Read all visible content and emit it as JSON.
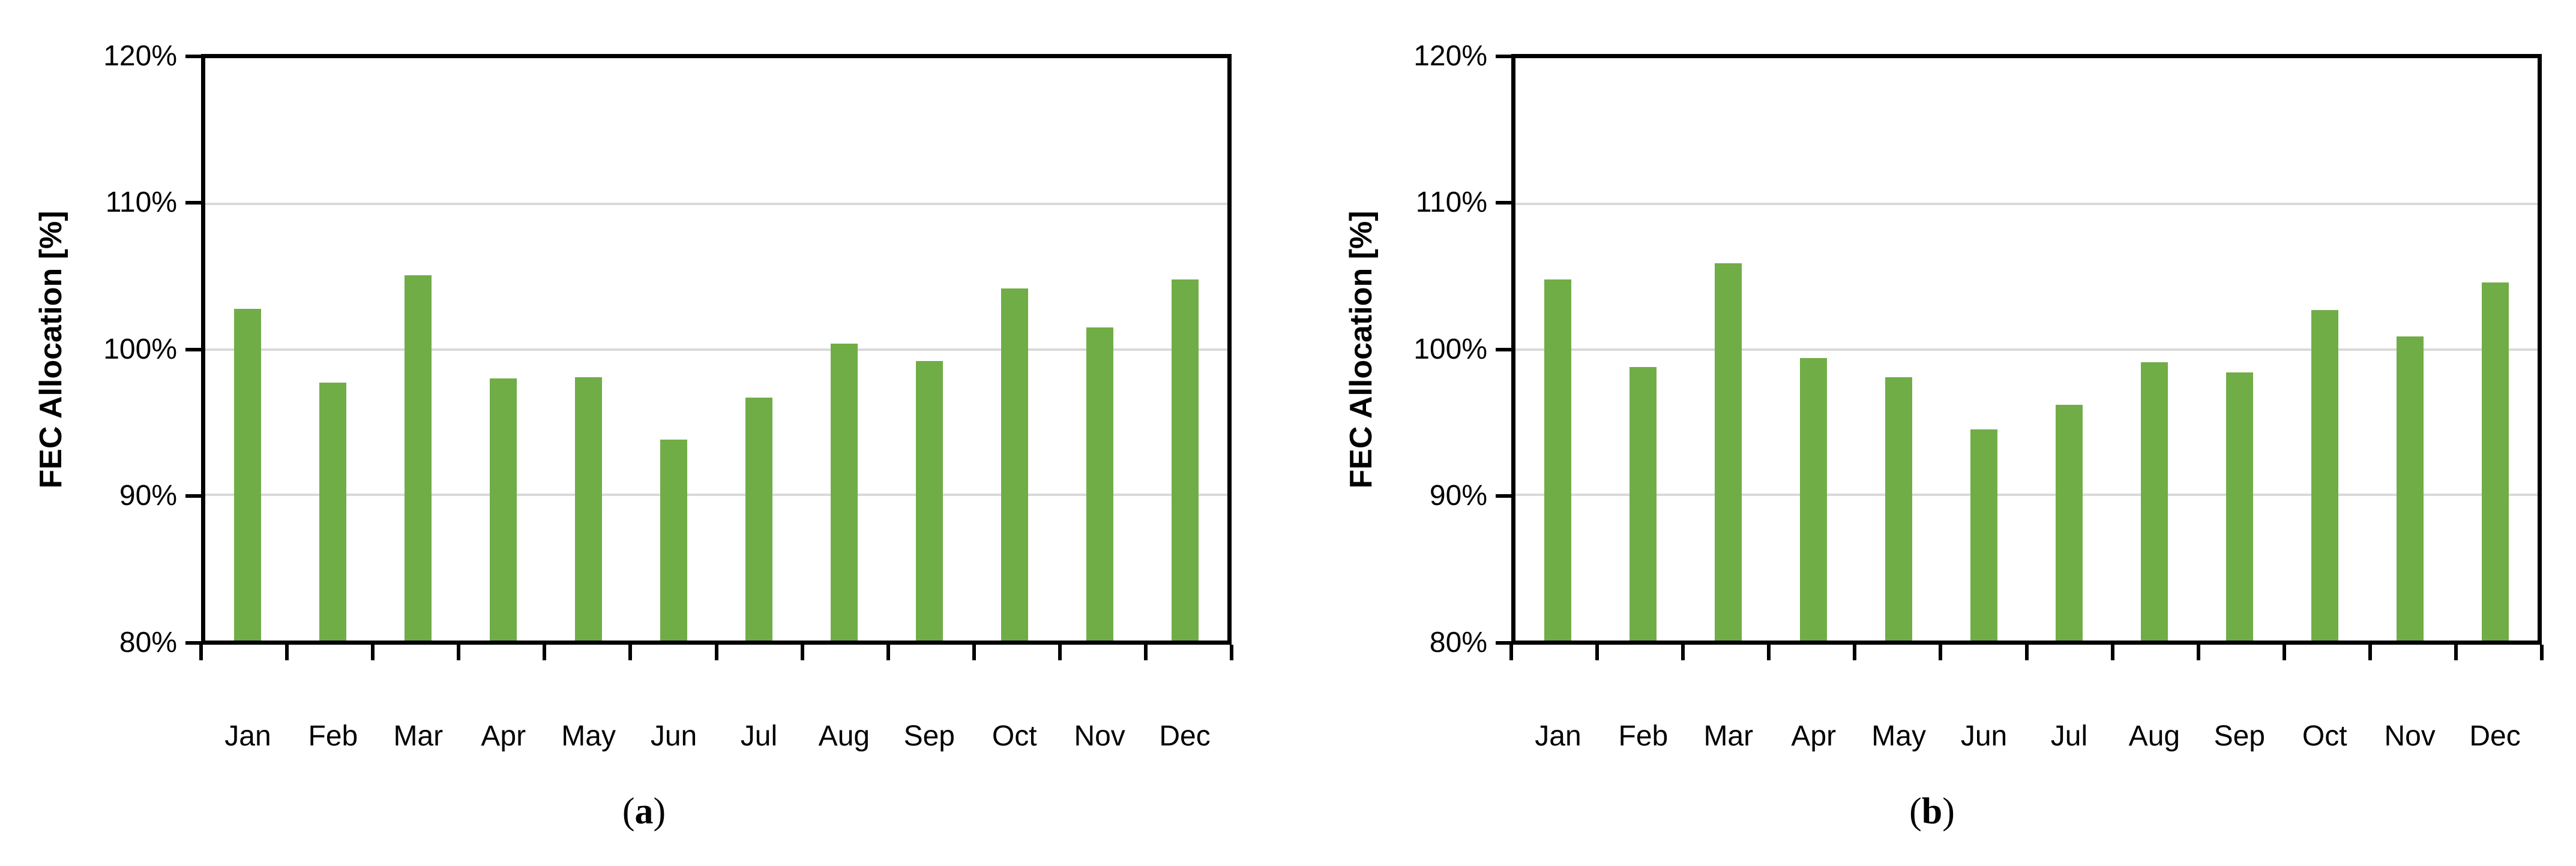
{
  "figure": {
    "background": "#FFFFFF",
    "text_color": "#000000"
  },
  "chart_data": [
    {
      "type": "bar",
      "subfigure": "a",
      "title": "",
      "xlabel": "",
      "ylabel": "FEC Allocation [%]",
      "categories": [
        "Jan",
        "Feb",
        "Mar",
        "Apr",
        "May",
        "Jun",
        "Jul",
        "Aug",
        "Sep",
        "Oct",
        "Nov",
        "Dec"
      ],
      "values": [
        102.8,
        97.7,
        105.1,
        98.0,
        98.1,
        93.8,
        96.7,
        100.4,
        99.2,
        104.2,
        101.5,
        104.8
      ],
      "ylim": [
        80,
        120
      ],
      "yticks": [
        {
          "value": 80,
          "label": "80%"
        },
        {
          "value": 90,
          "label": "90%"
        },
        {
          "value": 100,
          "label": "100%"
        },
        {
          "value": 110,
          "label": "110%"
        },
        {
          "value": 120,
          "label": "120%"
        }
      ],
      "gridline_values": [
        90,
        100,
        110
      ],
      "grid": "horizontal",
      "legend": "none",
      "colors": {
        "bar": "#70AD47",
        "gridline": "#D9D9D9",
        "axis": "#000000",
        "text": "#000000"
      },
      "caption": {
        "open": "(",
        "label": "a",
        "close": ")"
      }
    },
    {
      "type": "bar",
      "subfigure": "b",
      "title": "",
      "xlabel": "",
      "ylabel": "FEC Allocation [%]",
      "categories": [
        "Jan",
        "Feb",
        "Mar",
        "Apr",
        "May",
        "Jun",
        "Jul",
        "Aug",
        "Sep",
        "Oct",
        "Nov",
        "Dec"
      ],
      "values": [
        104.8,
        98.8,
        105.9,
        99.4,
        98.1,
        94.5,
        96.2,
        99.1,
        98.4,
        102.7,
        100.9,
        104.6
      ],
      "ylim": [
        80,
        120
      ],
      "yticks": [
        {
          "value": 80,
          "label": "80%"
        },
        {
          "value": 90,
          "label": "90%"
        },
        {
          "value": 100,
          "label": "100%"
        },
        {
          "value": 110,
          "label": "110%"
        },
        {
          "value": 120,
          "label": "120%"
        }
      ],
      "gridline_values": [
        90,
        100,
        110
      ],
      "grid": "horizontal",
      "legend": "none",
      "colors": {
        "bar": "#70AD47",
        "gridline": "#D9D9D9",
        "axis": "#000000",
        "text": "#000000"
      },
      "caption": {
        "open": "(",
        "label": "b",
        "close": ")"
      }
    }
  ]
}
